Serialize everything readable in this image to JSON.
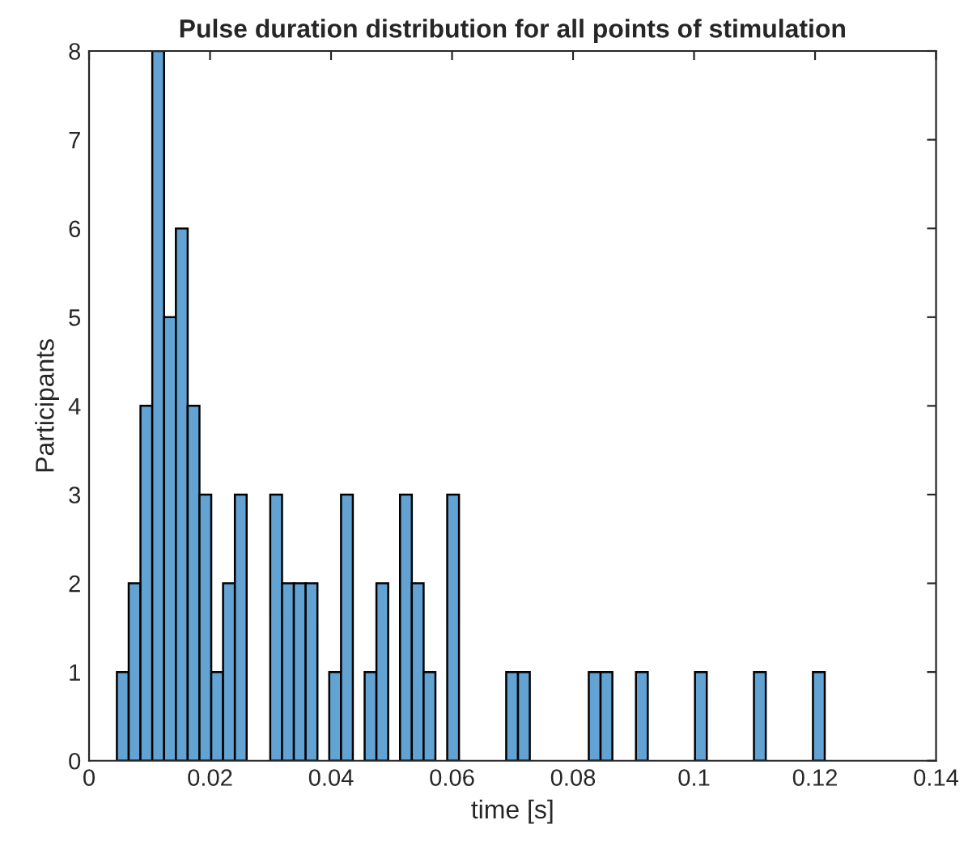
{
  "chart_data": {
    "type": "histogram",
    "title": "Pulse duration distribution for all points of stimulation",
    "xlabel": "time [s]",
    "ylabel": "Participants",
    "bins": [
      0.0046,
      0.00655,
      0.0085,
      0.01045,
      0.0124,
      0.01435,
      0.0163,
      0.01825,
      0.0202,
      0.02215,
      0.0241,
      0.02605,
      0.028,
      0.02995,
      0.0319,
      0.03385,
      0.0358,
      0.03775,
      0.0397,
      0.04165,
      0.0436,
      0.04555,
      0.0475,
      0.04945,
      0.0514,
      0.05335,
      0.0553,
      0.05725,
      0.0592,
      0.06115,
      0.0631,
      0.06505,
      0.067,
      0.06895,
      0.0709,
      0.07285,
      0.0748,
      0.07675,
      0.0787,
      0.08065,
      0.0826,
      0.08455,
      0.0865,
      0.08845,
      0.0904,
      0.09235,
      0.0943,
      0.09625,
      0.0982,
      0.10015,
      0.1021,
      0.10405,
      0.106,
      0.10795,
      0.1099,
      0.11185,
      0.1138,
      0.11575,
      0.1177,
      0.11965,
      0.1216
    ],
    "values": [
      1,
      2,
      4,
      8,
      5,
      6,
      4,
      3,
      1,
      2,
      3,
      0,
      0,
      3,
      2,
      2,
      2,
      0,
      1,
      3,
      0,
      1,
      2,
      0,
      3,
      2,
      1,
      0,
      3,
      0,
      0,
      0,
      0,
      1,
      1,
      0,
      0,
      0,
      0,
      0,
      1,
      1,
      0,
      0,
      1,
      0,
      0,
      0,
      0,
      1,
      0,
      0,
      0,
      0,
      1,
      0,
      0,
      0,
      0,
      1
    ],
    "color": "#62a3d4",
    "xlim": [
      0,
      0.14
    ],
    "xticks": [
      0,
      0.02,
      0.04,
      0.06,
      0.08,
      0.1,
      0.12,
      0.14
    ],
    "ylim": [
      0,
      8
    ],
    "yticks": [
      0,
      1,
      2,
      3,
      4,
      5,
      6,
      7,
      8
    ],
    "grid": false
  }
}
